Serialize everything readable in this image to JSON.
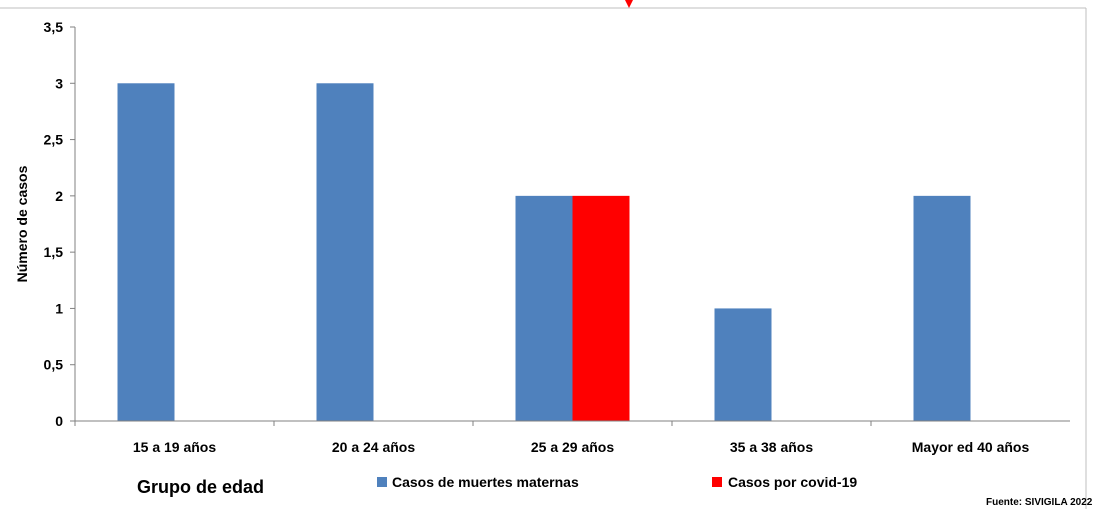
{
  "chart_data": {
    "type": "bar",
    "categories": [
      "15 a 19 años",
      "20 a 24 años",
      "25 a 29 años",
      "35 a 38 años",
      "Mayor ed 40 años"
    ],
    "series": [
      {
        "name": "Casos de muertes maternas",
        "color": "#4f81bd",
        "values": [
          3,
          3,
          2,
          1,
          2
        ]
      },
      {
        "name": "Casos por covid-19",
        "color": "#ff0000",
        "values": [
          0,
          0,
          2,
          0,
          0
        ]
      }
    ],
    "ylabel": "Número de casos",
    "xlabel": "Grupo de edad",
    "ylim": [
      0,
      3.5
    ],
    "yticks": [
      "0",
      "0,5",
      "1",
      "1,5",
      "2",
      "2,5",
      "3",
      "3,5"
    ],
    "grid": false,
    "legend_position": "bottom",
    "source": "Fuente: SIVIGILA 2022",
    "marker_color": "#ff0000"
  }
}
